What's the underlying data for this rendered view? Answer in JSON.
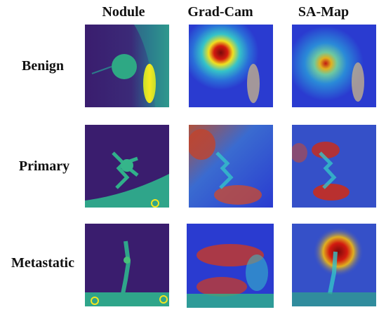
{
  "columns": [
    "Nodule",
    "Grad-Cam",
    "SA-Map"
  ],
  "rows": [
    "Benign",
    "Primary",
    "Metastatic"
  ],
  "colors": {
    "ct_background": "#3a1d6e",
    "ct_mid": "#2aa18a",
    "ct_bright": "#f4e61e",
    "heat_low": "#2a3bd0",
    "heat_mid": "#35c3c8",
    "heat_high": "#d21a10"
  }
}
